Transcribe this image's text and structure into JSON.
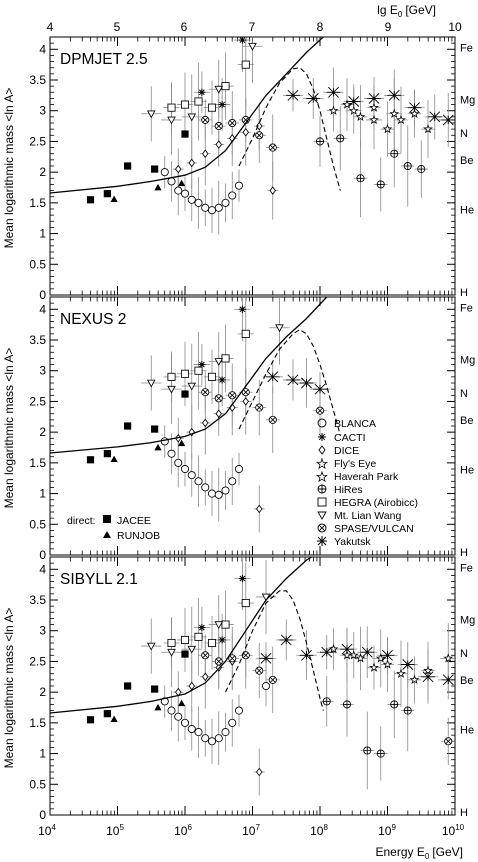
{
  "figure": {
    "top_axis_label": "lg E",
    "top_axis_label_sub": "0",
    "top_axis_label_unit": "[GeV]",
    "top_ticks": [
      "4",
      "5",
      "6",
      "7",
      "8",
      "9",
      "10"
    ],
    "bottom_axis_label": "Energy E",
    "bottom_axis_label_sub": "0",
    "bottom_axis_label_unit": "[GeV]",
    "bottom_tick_base": "10",
    "bottom_tick_exponents": [
      "4",
      "5",
      "6",
      "7",
      "8",
      "9",
      "10"
    ],
    "y_axis_label": "Mean logarithmic mass <ln A>",
    "y_ticks": [
      "0",
      "0.5",
      "1",
      "1.5",
      "2",
      "2.5",
      "3",
      "3.5",
      "4"
    ],
    "element_labels": [
      {
        "label": "H",
        "lnA": 0
      },
      {
        "label": "He",
        "lnA": 1.39
      },
      {
        "label": "Be",
        "lnA": 2.2
      },
      {
        "label": "N",
        "lnA": 2.64
      },
      {
        "label": "Mg",
        "lnA": 3.18
      },
      {
        "label": "Fe",
        "lnA": 4.03
      }
    ],
    "legend_experiments": [
      "BLANCA",
      "CACTI",
      "DICE",
      "Fly's Eye",
      "Haverah Park",
      "HiRes",
      "HEGRA (Airobicc)",
      "Mt. Lian Wang",
      "SPASE/VULCAN",
      "Yakutsk"
    ],
    "legend_direct_title": "direct:",
    "legend_direct": [
      "JACEE",
      "RUNJOB"
    ],
    "colors": {
      "ink": "#000000",
      "error_bar": "#888888",
      "background": "#ffffff"
    }
  },
  "chart_data": [
    {
      "type": "scatter",
      "panel_label": "DPMJET 2.5",
      "xlim": [
        4,
        10
      ],
      "ylim": [
        0,
        4.2
      ],
      "x_scale": "lg E0 [GeV]",
      "grid": false,
      "curves": {
        "solid": {
          "x": [
            4.0,
            5.0,
            5.5,
            6.0,
            6.3,
            6.6,
            6.9,
            7.2,
            7.5,
            7.8,
            8.1
          ],
          "y": [
            1.66,
            1.77,
            1.85,
            1.95,
            2.08,
            2.35,
            2.8,
            3.25,
            3.6,
            3.95,
            4.25
          ]
        },
        "dashed": {
          "x": [
            6.8,
            7.0,
            7.2,
            7.4,
            7.6,
            7.7,
            7.8,
            7.9,
            8.0,
            8.1,
            8.2,
            8.3
          ],
          "y": [
            2.1,
            2.55,
            3.05,
            3.45,
            3.68,
            3.7,
            3.6,
            3.35,
            3.0,
            2.55,
            2.1,
            1.7
          ]
        }
      },
      "series": [
        {
          "name": "JACEE",
          "x": [
            4.6,
            4.85,
            5.15,
            5.55,
            6.0
          ],
          "y": [
            1.55,
            1.65,
            2.1,
            2.05,
            2.62
          ]
        },
        {
          "name": "RUNJOB",
          "x": [
            4.95,
            5.6,
            5.95
          ],
          "y": [
            1.56,
            1.75,
            1.82
          ]
        },
        {
          "name": "BLANCA",
          "x": [
            5.7,
            5.8,
            5.9,
            6.0,
            6.1,
            6.2,
            6.3,
            6.4,
            6.5,
            6.6,
            6.7,
            6.8
          ],
          "y": [
            2.0,
            1.85,
            1.7,
            1.65,
            1.55,
            1.5,
            1.42,
            1.38,
            1.42,
            1.5,
            1.62,
            1.78
          ]
        },
        {
          "name": "CACTI",
          "x": [
            6.25,
            6.55,
            6.85
          ],
          "y": [
            3.3,
            3.1,
            4.15
          ]
        },
        {
          "name": "DICE",
          "x": [
            5.9,
            6.1,
            6.3,
            6.5,
            6.7,
            6.9,
            7.1,
            7.3
          ],
          "y": [
            2.05,
            2.15,
            2.3,
            2.45,
            2.55,
            2.65,
            2.75,
            1.7
          ]
        },
        {
          "name": "Fly's Eye",
          "x": [
            8.2,
            8.4,
            8.6,
            8.8,
            9.0,
            9.2,
            9.4,
            9.6
          ],
          "y": [
            3.0,
            3.1,
            2.9,
            3.05,
            2.7,
            2.85,
            2.95,
            2.7
          ]
        },
        {
          "name": "Haverah Park",
          "x": [
            8.5,
            8.8,
            9.1
          ],
          "y": [
            3.0,
            2.85,
            2.95
          ]
        },
        {
          "name": "HiRes",
          "x": [
            8.0,
            8.3,
            8.6,
            8.9,
            9.1,
            9.3,
            9.5
          ],
          "y": [
            2.5,
            2.55,
            1.9,
            1.8,
            2.3,
            2.1,
            2.05
          ]
        },
        {
          "name": "HEGRA (Airobicc)",
          "x": [
            5.8,
            6.0,
            6.2,
            6.4,
            6.6,
            6.9
          ],
          "y": [
            3.05,
            3.1,
            3.15,
            3.05,
            3.4,
            3.75
          ]
        },
        {
          "name": "Mt. Lian Wang",
          "x": [
            5.5,
            5.8,
            6.1,
            6.5,
            7.0
          ],
          "y": [
            2.95,
            2.85,
            2.9,
            3.35,
            4.05
          ]
        },
        {
          "name": "SPASE/VULCAN",
          "x": [
            6.3,
            6.5,
            6.7,
            6.9,
            7.1,
            7.3
          ],
          "y": [
            2.85,
            2.75,
            2.8,
            2.85,
            2.6,
            2.4
          ]
        },
        {
          "name": "Yakutsk",
          "x": [
            7.6,
            7.9,
            8.2,
            8.5,
            8.8,
            9.1,
            9.4,
            9.7,
            9.9
          ],
          "y": [
            3.25,
            3.2,
            3.3,
            3.15,
            3.2,
            3.25,
            3.05,
            2.9,
            2.85
          ]
        }
      ]
    },
    {
      "type": "scatter",
      "panel_label": "NEXUS 2",
      "xlim": [
        4,
        10
      ],
      "ylim": [
        0,
        4.2
      ],
      "x_scale": "lg E0 [GeV]",
      "grid": false,
      "curves": {
        "solid": {
          "x": [
            4.0,
            5.0,
            5.5,
            6.0,
            6.3,
            6.6,
            6.9,
            7.2,
            7.5,
            7.8,
            8.1
          ],
          "y": [
            1.66,
            1.76,
            1.83,
            1.93,
            2.05,
            2.3,
            2.75,
            3.2,
            3.55,
            3.85,
            4.2
          ]
        },
        "dashed": {
          "x": [
            6.8,
            7.0,
            7.2,
            7.4,
            7.6,
            7.7,
            7.8,
            7.9,
            8.0,
            8.1,
            8.2,
            8.3
          ],
          "y": [
            2.05,
            2.5,
            2.95,
            3.35,
            3.6,
            3.67,
            3.6,
            3.4,
            3.1,
            2.75,
            2.35,
            1.95
          ]
        }
      },
      "series": [
        {
          "name": "JACEE",
          "x": [
            4.6,
            4.85,
            5.15,
            5.55,
            6.0
          ],
          "y": [
            1.55,
            1.65,
            2.1,
            2.05,
            2.62
          ]
        },
        {
          "name": "RUNJOB",
          "x": [
            4.95,
            5.6,
            5.95
          ],
          "y": [
            1.56,
            1.75,
            1.82
          ]
        },
        {
          "name": "BLANCA",
          "x": [
            5.7,
            5.8,
            5.9,
            6.0,
            6.1,
            6.2,
            6.3,
            6.4,
            6.5,
            6.6,
            6.7,
            6.8
          ],
          "y": [
            1.85,
            1.65,
            1.5,
            1.4,
            1.3,
            1.2,
            1.1,
            1.0,
            0.98,
            1.05,
            1.2,
            1.4
          ]
        },
        {
          "name": "CACTI",
          "x": [
            6.25,
            6.55,
            6.85
          ],
          "y": [
            3.1,
            2.85,
            4.0
          ]
        },
        {
          "name": "DICE",
          "x": [
            5.9,
            6.1,
            6.3,
            6.5,
            6.7,
            6.9,
            7.1
          ],
          "y": [
            1.9,
            2.0,
            2.15,
            2.3,
            2.4,
            2.5,
            0.75
          ]
        },
        {
          "name": "HEGRA (Airobicc)",
          "x": [
            5.8,
            6.0,
            6.2,
            6.4,
            6.6,
            6.9
          ],
          "y": [
            2.9,
            2.95,
            3.0,
            2.9,
            3.2,
            3.6
          ]
        },
        {
          "name": "Mt. Lian Wang",
          "x": [
            5.5,
            5.8,
            6.1,
            6.5,
            7.4
          ],
          "y": [
            2.8,
            2.7,
            2.75,
            3.15,
            3.7
          ]
        },
        {
          "name": "SPASE/VULCAN",
          "x": [
            6.3,
            6.5,
            6.7,
            6.9,
            7.1,
            7.3,
            8.0
          ],
          "y": [
            2.65,
            2.55,
            2.6,
            2.65,
            2.4,
            2.2,
            2.35
          ]
        },
        {
          "name": "Yakutsk",
          "x": [
            7.3,
            7.6,
            7.8,
            8.0
          ],
          "y": [
            2.9,
            2.85,
            2.8,
            2.7
          ]
        }
      ]
    },
    {
      "type": "scatter",
      "panel_label": "SIBYLL 2.1",
      "xlim": [
        4,
        10
      ],
      "ylim": [
        0,
        4.2
      ],
      "x_scale": "lg E0 [GeV]",
      "grid": false,
      "curves": {
        "solid": {
          "x": [
            4.0,
            5.0,
            5.5,
            6.0,
            6.3,
            6.6,
            6.9,
            7.2,
            7.5,
            7.8,
            7.95
          ],
          "y": [
            1.66,
            1.77,
            1.85,
            1.97,
            2.15,
            2.5,
            3.0,
            3.5,
            3.85,
            4.15,
            4.25
          ]
        },
        "dashed": {
          "x": [
            6.6,
            6.8,
            7.0,
            7.2,
            7.4,
            7.5,
            7.6,
            7.7,
            7.8,
            7.9,
            8.0,
            8.05
          ],
          "y": [
            2.0,
            2.45,
            3.0,
            3.45,
            3.65,
            3.65,
            3.5,
            3.2,
            2.8,
            2.35,
            1.9,
            1.7
          ]
        }
      },
      "series": [
        {
          "name": "JACEE",
          "x": [
            4.6,
            4.85,
            5.15,
            5.55,
            6.0
          ],
          "y": [
            1.55,
            1.65,
            2.1,
            2.05,
            2.62
          ]
        },
        {
          "name": "RUNJOB",
          "x": [
            4.95,
            5.6,
            5.95
          ],
          "y": [
            1.56,
            1.75,
            1.82
          ]
        },
        {
          "name": "BLANCA",
          "x": [
            5.7,
            5.8,
            5.9,
            6.0,
            6.1,
            6.2,
            6.3,
            6.4,
            6.5,
            6.6,
            6.7,
            6.8,
            7.2
          ],
          "y": [
            1.85,
            1.7,
            1.6,
            1.5,
            1.4,
            1.35,
            1.25,
            1.2,
            1.25,
            1.35,
            1.5,
            1.7,
            2.1
          ]
        },
        {
          "name": "CACTI",
          "x": [
            6.25,
            6.55,
            6.85
          ],
          "y": [
            3.05,
            2.85,
            3.85
          ]
        },
        {
          "name": "DICE",
          "x": [
            5.9,
            6.1,
            6.3,
            6.5,
            6.7,
            6.9,
            7.1
          ],
          "y": [
            2.0,
            2.1,
            2.25,
            2.4,
            2.5,
            2.6,
            0.7
          ]
        },
        {
          "name": "Fly's Eye",
          "x": [
            8.2,
            8.4,
            8.6,
            8.8,
            9.0,
            9.2,
            9.4,
            9.6
          ],
          "y": [
            2.7,
            2.6,
            2.55,
            2.4,
            2.45,
            2.3,
            2.2,
            2.35
          ]
        },
        {
          "name": "Haverah Park",
          "x": [
            8.5,
            8.9,
            9.9
          ],
          "y": [
            2.6,
            2.55,
            2.55
          ]
        },
        {
          "name": "HiRes",
          "x": [
            8.1,
            8.4,
            8.7,
            8.9,
            9.1,
            9.3
          ],
          "y": [
            1.85,
            1.8,
            1.05,
            1.0,
            1.8,
            1.7
          ]
        },
        {
          "name": "HEGRA (Airobicc)",
          "x": [
            5.8,
            6.0,
            6.2,
            6.4,
            6.6,
            6.9
          ],
          "y": [
            2.8,
            2.85,
            2.9,
            2.8,
            3.1,
            3.45
          ]
        },
        {
          "name": "Mt. Lian Wang",
          "x": [
            5.5,
            5.8,
            6.1,
            6.5,
            7.2
          ],
          "y": [
            2.75,
            2.65,
            2.7,
            3.1,
            3.55
          ]
        },
        {
          "name": "SPASE/VULCAN",
          "x": [
            6.3,
            6.5,
            6.7,
            6.9,
            7.1,
            7.3,
            9.9
          ],
          "y": [
            2.6,
            2.5,
            2.55,
            2.6,
            2.35,
            2.2,
            1.2
          ]
        },
        {
          "name": "Yakutsk",
          "x": [
            7.2,
            7.5,
            7.8,
            8.1,
            8.4,
            8.7,
            9.0,
            9.3,
            9.6,
            9.9
          ],
          "y": [
            2.55,
            2.85,
            2.6,
            2.65,
            2.7,
            2.65,
            2.6,
            2.45,
            2.25,
            2.2
          ]
        }
      ]
    }
  ]
}
